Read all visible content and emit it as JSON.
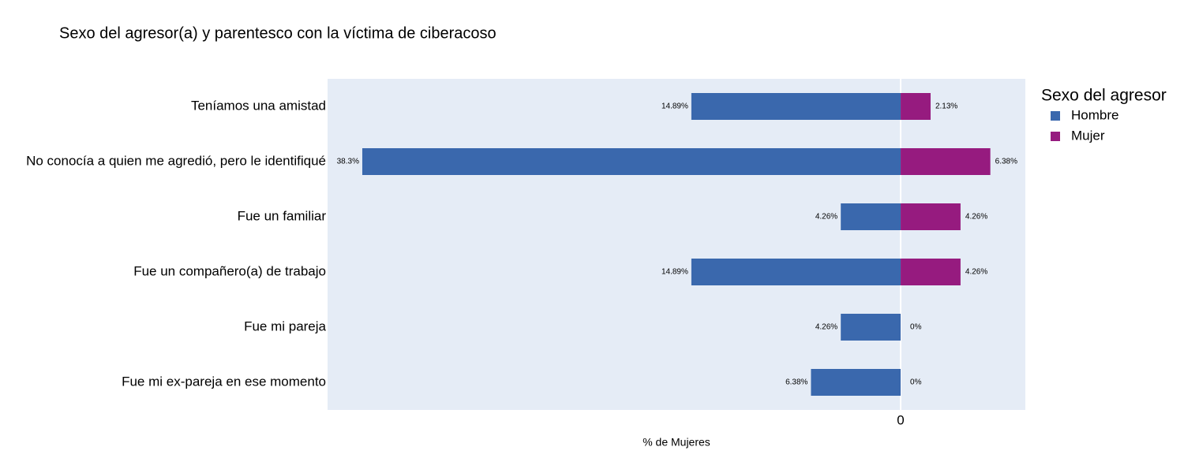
{
  "chart_data": {
    "type": "bar",
    "orientation": "horizontal",
    "barmode": "relative",
    "title": "Sexo del agresor(a) y parentesco con la víctima de ciberacoso",
    "x_label": "% de Mujeres",
    "legend_title": "Sexo del agresor",
    "legend_position": "right",
    "categories": [
      "Teníamos una amistad",
      "No conocía a quien me agredió, pero le identifiqué",
      "Fue un familiar",
      "Fue un compañero(a) de trabajo",
      "Fue mi pareja",
      "Fue mi ex-pareja en ese momento"
    ],
    "series": [
      {
        "name": "Hombre",
        "color": "#3a68ad",
        "values": [
          -14.89,
          -38.3,
          -4.26,
          -14.89,
          -4.26,
          -6.38
        ],
        "value_labels": [
          "14.89%",
          "38.3%",
          "4.26%",
          "14.89%",
          "4.26%",
          "6.38%"
        ]
      },
      {
        "name": "Mujer",
        "color": "#961b7f",
        "values": [
          2.13,
          6.38,
          4.26,
          4.26,
          0,
          0
        ],
        "value_labels": [
          "2.13%",
          "6.38%",
          "4.26%",
          "4.26%",
          "0%",
          "0%"
        ]
      }
    ],
    "xlim": [
      -40.77,
      8.87
    ],
    "xticks": [
      0
    ],
    "zeroline": true,
    "background": "#e5ecf6"
  }
}
